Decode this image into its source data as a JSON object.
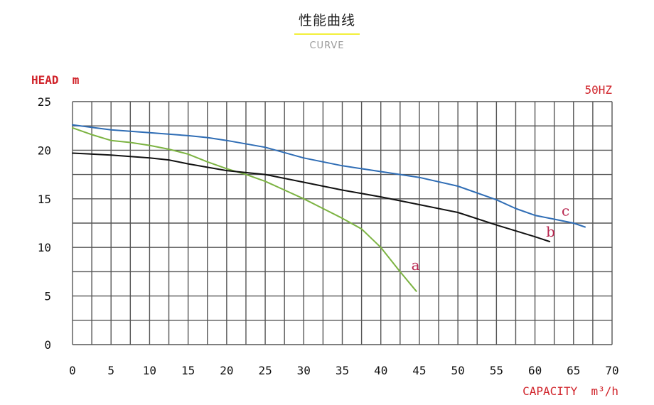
{
  "header": {
    "title": "性能曲线",
    "subtitle": "CURVE"
  },
  "colors": {
    "grid": "#555555",
    "axis_label": "#d0232a",
    "series_a": "#7cb342",
    "series_b": "#111111",
    "series_c": "#2f6db5",
    "curve_label": "#b8264f"
  },
  "chart_data": {
    "type": "line",
    "ylabel": "HEAD  m",
    "xlabel": "CAPACITY  m³/h",
    "frequency_label": "50HZ",
    "xlim": [
      0,
      70
    ],
    "ylim": [
      0,
      25
    ],
    "x_ticks": [
      0,
      5,
      10,
      15,
      20,
      25,
      30,
      35,
      40,
      45,
      50,
      55,
      60,
      65,
      70
    ],
    "y_ticks": [
      0,
      5,
      10,
      15,
      20,
      25
    ],
    "grid": true,
    "series": [
      {
        "name": "a",
        "color": "#7cb342",
        "points": [
          [
            0,
            22.3
          ],
          [
            2.5,
            21.6
          ],
          [
            5,
            21.0
          ],
          [
            7.5,
            20.8
          ],
          [
            10,
            20.5
          ],
          [
            12.5,
            20.1
          ],
          [
            15,
            19.6
          ],
          [
            17.5,
            18.8
          ],
          [
            20,
            18.1
          ],
          [
            22.5,
            17.5
          ],
          [
            25,
            16.8
          ],
          [
            27.5,
            15.9
          ],
          [
            30,
            15.0
          ],
          [
            32.5,
            14.0
          ],
          [
            35,
            13.0
          ],
          [
            37.5,
            11.9
          ],
          [
            40,
            10.0
          ],
          [
            42.5,
            7.5
          ],
          [
            44.6,
            5.5
          ]
        ]
      },
      {
        "name": "b",
        "color": "#111111",
        "points": [
          [
            0,
            19.7
          ],
          [
            5,
            19.5
          ],
          [
            10,
            19.2
          ],
          [
            12.5,
            19.0
          ],
          [
            15,
            18.6
          ],
          [
            20,
            17.9
          ],
          [
            25,
            17.5
          ],
          [
            30,
            16.7
          ],
          [
            35,
            15.9
          ],
          [
            40,
            15.2
          ],
          [
            45,
            14.4
          ],
          [
            50,
            13.6
          ],
          [
            55,
            12.3
          ],
          [
            60,
            11.1
          ],
          [
            61.9,
            10.6
          ]
        ]
      },
      {
        "name": "c",
        "color": "#2f6db5",
        "points": [
          [
            0,
            22.6
          ],
          [
            5,
            22.1
          ],
          [
            10,
            21.8
          ],
          [
            15,
            21.5
          ],
          [
            17.5,
            21.3
          ],
          [
            20,
            21.0
          ],
          [
            25,
            20.3
          ],
          [
            30,
            19.2
          ],
          [
            35,
            18.4
          ],
          [
            40,
            17.8
          ],
          [
            45,
            17.2
          ],
          [
            50,
            16.3
          ],
          [
            55,
            14.9
          ],
          [
            57.5,
            14.0
          ],
          [
            60,
            13.3
          ],
          [
            62.5,
            12.9
          ],
          [
            65,
            12.5
          ],
          [
            66.5,
            12.1
          ]
        ]
      }
    ]
  }
}
